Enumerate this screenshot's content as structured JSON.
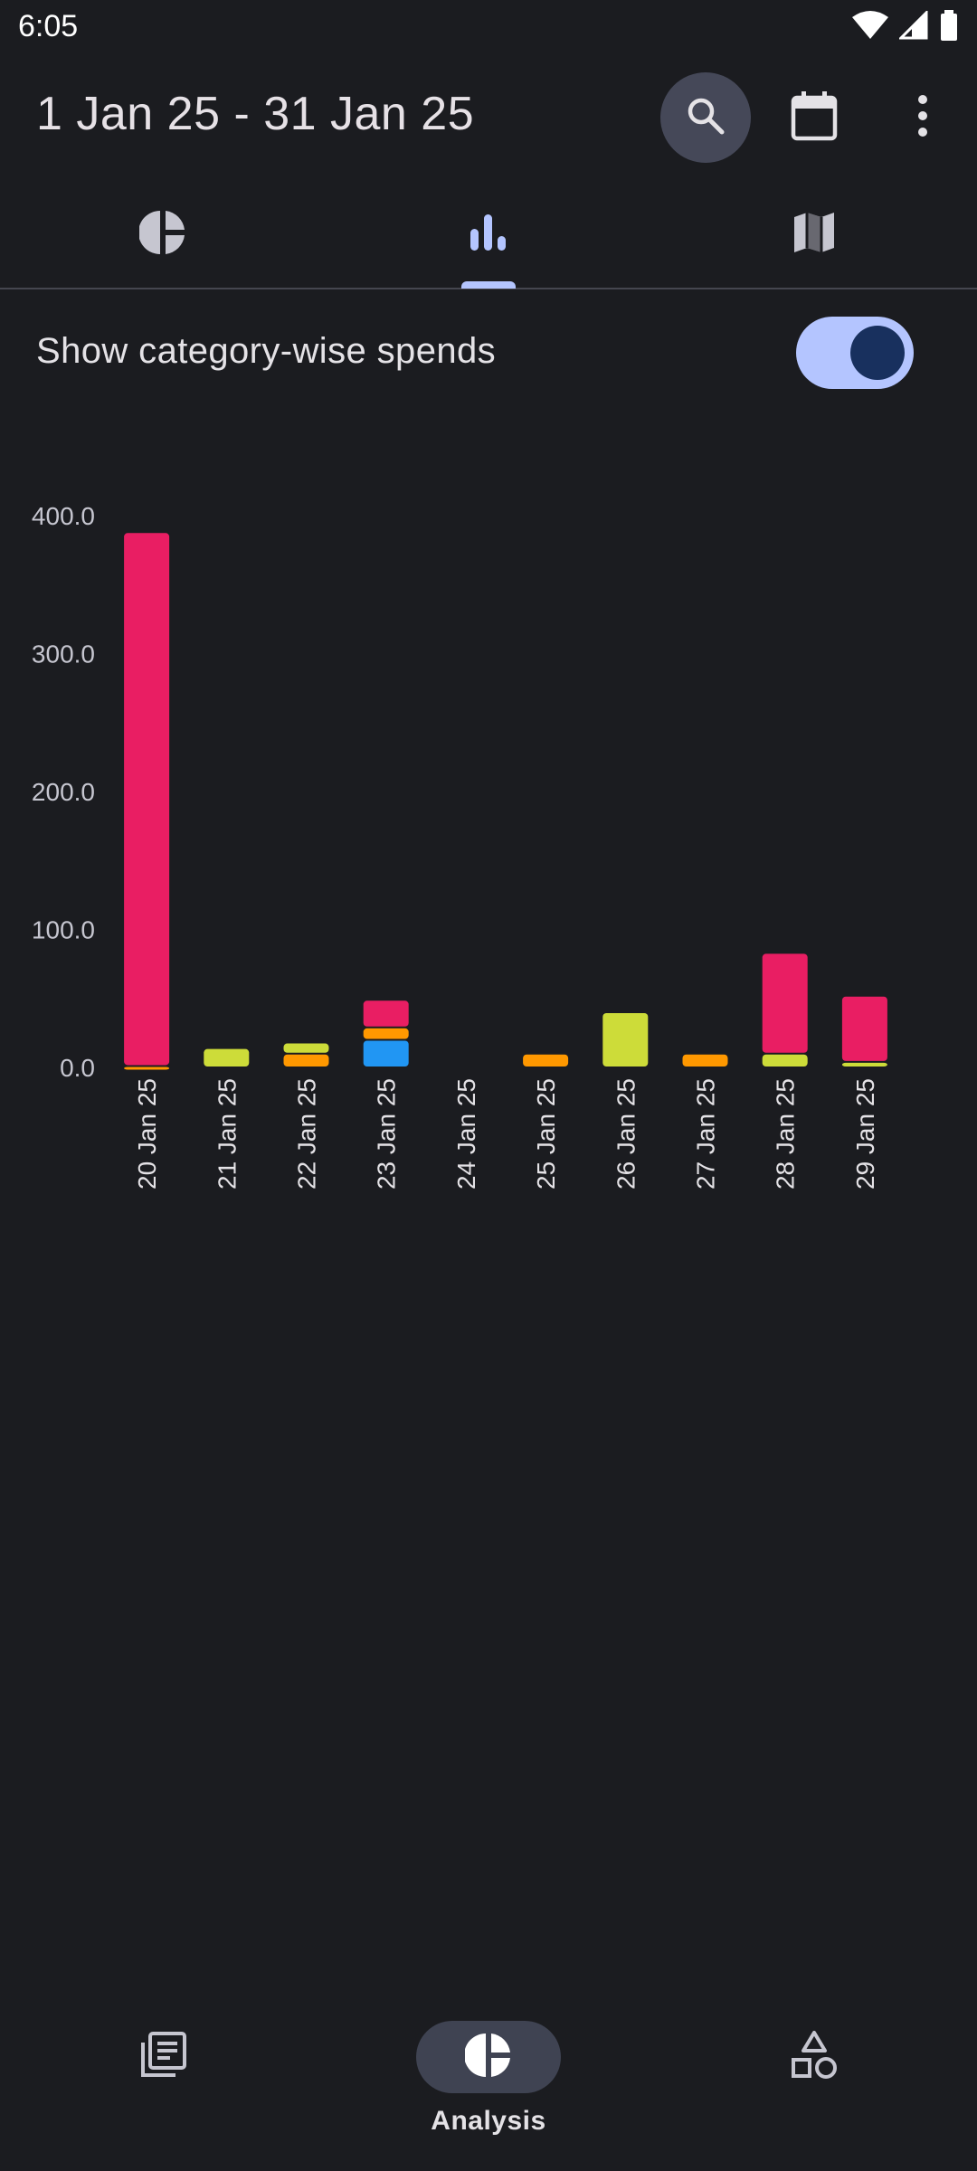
{
  "status_bar": {
    "time": "6:05",
    "icons": [
      "wifi-icon",
      "signal-icon",
      "battery-icon"
    ]
  },
  "app_bar": {
    "title": "1 Jan 25 - 31 Jan 25",
    "actions": [
      "search-icon",
      "calendar-icon",
      "more-vert-icon"
    ]
  },
  "tabs": [
    {
      "icon": "pie-chart-icon",
      "selected": false
    },
    {
      "icon": "bar-chart-icon",
      "selected": true
    },
    {
      "icon": "map-icon",
      "selected": false
    }
  ],
  "toggle": {
    "label": "Show category-wise spends",
    "on": true
  },
  "colors": {
    "pink": "#e91e63",
    "lime": "#cddc39",
    "orange": "#ff9800",
    "blue": "#2196f3",
    "accent": "#b4c5ff"
  },
  "chart_data": {
    "type": "bar",
    "stacked": true,
    "ylim": [
      0,
      400
    ],
    "y_ticks": [
      "0.0",
      "100.0",
      "200.0",
      "300.0",
      "400.0"
    ],
    "categories": [
      "20 Jan 25",
      "21 Jan 25",
      "22 Jan 25",
      "23 Jan 25",
      "24 Jan 25",
      "25 Jan 25",
      "26 Jan 25",
      "27 Jan 25",
      "28 Jan 25",
      "29 Jan 25"
    ],
    "series": [
      {
        "color": "#2196f3",
        "values": [
          0,
          0,
          0,
          20,
          0,
          0,
          0,
          0,
          0,
          0
        ]
      },
      {
        "color": "#ff9800",
        "values": [
          1,
          0,
          10,
          9,
          0,
          10,
          0,
          10,
          0,
          0
        ]
      },
      {
        "color": "#cddc39",
        "values": [
          0,
          14,
          8,
          0,
          0,
          0,
          40,
          0,
          10,
          4
        ]
      },
      {
        "color": "#e91e63",
        "values": [
          387,
          0,
          0,
          20,
          0,
          0,
          0,
          0,
          73,
          48
        ]
      }
    ],
    "grid": false,
    "legend": "none"
  },
  "bottom_nav": [
    {
      "icon": "transactions-icon",
      "label": "",
      "selected": false
    },
    {
      "icon": "analysis-icon",
      "label": "Analysis",
      "selected": true
    },
    {
      "icon": "categories-icon",
      "label": "",
      "selected": false
    }
  ]
}
